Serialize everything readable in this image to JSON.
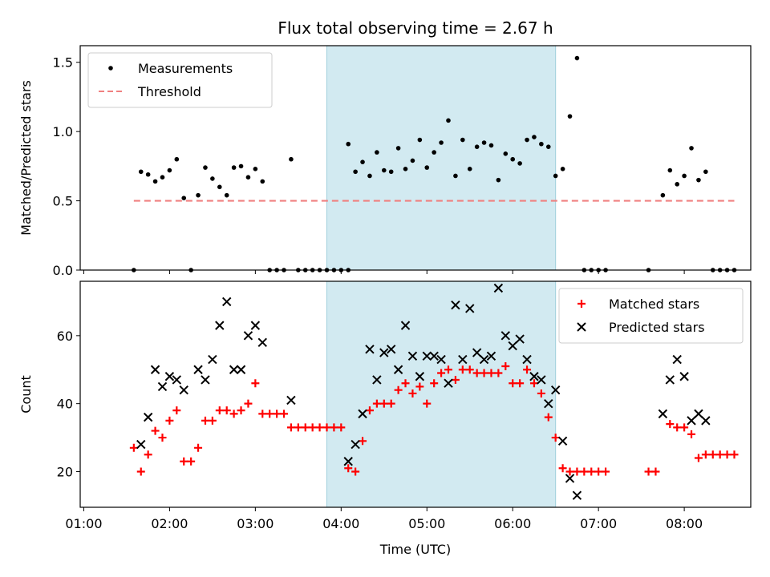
{
  "chart_data": {
    "type": "scatter",
    "title": "Flux total observing time = 2.67 h",
    "xlabel": "Time (UTC)",
    "x_ticks": [
      "01:00",
      "02:00",
      "03:00",
      "04:00",
      "05:00",
      "06:00",
      "07:00",
      "08:00"
    ],
    "highlight_span": [
      "03:50",
      "06:30"
    ],
    "highlight_color": "#add8e6",
    "panels": [
      {
        "ylabel": "Matched/Predicted stars",
        "ylim": [
          0,
          1.62
        ],
        "y_ticks": [
          "0.0",
          "0.5",
          "1.0",
          "1.5"
        ],
        "legend_position": "upper left",
        "series": [
          {
            "name": "Measurements",
            "color": "#000000",
            "marker": "dot",
            "points": [
              [
                "01:35",
                0.0
              ],
              [
                "01:40",
                0.71
              ],
              [
                "01:45",
                0.69
              ],
              [
                "01:50",
                0.64
              ],
              [
                "01:55",
                0.67
              ],
              [
                "02:00",
                0.72
              ],
              [
                "02:05",
                0.8
              ],
              [
                "02:10",
                0.52
              ],
              [
                "02:15",
                0.0
              ],
              [
                "02:20",
                0.54
              ],
              [
                "02:25",
                0.74
              ],
              [
                "02:30",
                0.66
              ],
              [
                "02:35",
                0.6
              ],
              [
                "02:40",
                0.54
              ],
              [
                "02:45",
                0.74
              ],
              [
                "02:50",
                0.75
              ],
              [
                "02:55",
                0.67
              ],
              [
                "03:00",
                0.73
              ],
              [
                "03:05",
                0.64
              ],
              [
                "03:10",
                0.0
              ],
              [
                "03:15",
                0.0
              ],
              [
                "03:20",
                0.0
              ],
              [
                "03:25",
                0.8
              ],
              [
                "03:30",
                0.0
              ],
              [
                "03:35",
                0.0
              ],
              [
                "03:40",
                0.0
              ],
              [
                "03:45",
                0.0
              ],
              [
                "03:50",
                0.0
              ],
              [
                "03:55",
                0.0
              ],
              [
                "04:00",
                0.0
              ],
              [
                "04:05",
                0.0
              ],
              [
                "04:05",
                0.91
              ],
              [
                "04:10",
                0.71
              ],
              [
                "04:15",
                0.78
              ],
              [
                "04:20",
                0.68
              ],
              [
                "04:25",
                0.85
              ],
              [
                "04:30",
                0.72
              ],
              [
                "04:35",
                0.71
              ],
              [
                "04:40",
                0.88
              ],
              [
                "04:45",
                0.73
              ],
              [
                "04:50",
                0.79
              ],
              [
                "04:55",
                0.94
              ],
              [
                "05:00",
                0.74
              ],
              [
                "05:05",
                0.85
              ],
              [
                "05:10",
                0.92
              ],
              [
                "05:15",
                1.08
              ],
              [
                "05:20",
                0.68
              ],
              [
                "05:25",
                0.94
              ],
              [
                "05:30",
                0.73
              ],
              [
                "05:35",
                0.89
              ],
              [
                "05:40",
                0.92
              ],
              [
                "05:45",
                0.9
              ],
              [
                "05:50",
                0.65
              ],
              [
                "05:55",
                0.84
              ],
              [
                "06:00",
                0.8
              ],
              [
                "06:05",
                0.77
              ],
              [
                "06:10",
                0.94
              ],
              [
                "06:15",
                0.96
              ],
              [
                "06:20",
                0.91
              ],
              [
                "06:25",
                0.89
              ],
              [
                "06:30",
                0.68
              ],
              [
                "06:35",
                0.73
              ],
              [
                "06:40",
                1.11
              ],
              [
                "06:45",
                1.53
              ],
              [
                "06:50",
                0.0
              ],
              [
                "06:55",
                0.0
              ],
              [
                "07:00",
                0.0
              ],
              [
                "07:05",
                0.0
              ],
              [
                "07:35",
                0.0
              ],
              [
                "07:45",
                0.54
              ],
              [
                "07:50",
                0.72
              ],
              [
                "07:55",
                0.62
              ],
              [
                "08:00",
                0.68
              ],
              [
                "08:05",
                0.88
              ],
              [
                "08:10",
                0.65
              ],
              [
                "08:15",
                0.71
              ],
              [
                "08:20",
                0.0
              ],
              [
                "08:25",
                0.0
              ],
              [
                "08:30",
                0.0
              ],
              [
                "08:35",
                0.0
              ]
            ]
          },
          {
            "name": "Threshold",
            "color": "#f08080",
            "marker": "dashed-line",
            "points": [
              [
                "01:35",
                0.5
              ],
              [
                "08:35",
                0.5
              ]
            ]
          }
        ]
      },
      {
        "ylabel": "Count",
        "ylim": [
          9.5,
          76
        ],
        "y_ticks": [
          "20",
          "40",
          "60"
        ],
        "legend_position": "upper right",
        "series": [
          {
            "name": "Matched stars",
            "color": "#ff0000",
            "marker": "plus",
            "points": [
              [
                "01:35",
                27
              ],
              [
                "01:40",
                20
              ],
              [
                "01:45",
                25
              ],
              [
                "01:50",
                32
              ],
              [
                "01:55",
                30
              ],
              [
                "02:00",
                35
              ],
              [
                "02:05",
                38
              ],
              [
                "02:10",
                23
              ],
              [
                "02:15",
                23
              ],
              [
                "02:20",
                27
              ],
              [
                "02:25",
                35
              ],
              [
                "02:30",
                35
              ],
              [
                "02:35",
                38
              ],
              [
                "02:40",
                38
              ],
              [
                "02:45",
                37
              ],
              [
                "02:50",
                38
              ],
              [
                "02:55",
                40
              ],
              [
                "03:00",
                46
              ],
              [
                "03:05",
                37
              ],
              [
                "03:10",
                37
              ],
              [
                "03:15",
                37
              ],
              [
                "03:20",
                37
              ],
              [
                "03:25",
                33
              ],
              [
                "03:30",
                33
              ],
              [
                "03:35",
                33
              ],
              [
                "03:40",
                33
              ],
              [
                "03:45",
                33
              ],
              [
                "03:50",
                33
              ],
              [
                "03:55",
                33
              ],
              [
                "04:00",
                33
              ],
              [
                "04:05",
                21
              ],
              [
                "04:10",
                20
              ],
              [
                "04:15",
                29
              ],
              [
                "04:20",
                38
              ],
              [
                "04:25",
                40
              ],
              [
                "04:30",
                40
              ],
              [
                "04:35",
                40
              ],
              [
                "04:40",
                44
              ],
              [
                "04:45",
                46
              ],
              [
                "04:50",
                43
              ],
              [
                "04:55",
                45
              ],
              [
                "05:00",
                40
              ],
              [
                "05:05",
                46
              ],
              [
                "05:10",
                49
              ],
              [
                "05:15",
                50
              ],
              [
                "05:20",
                47
              ],
              [
                "05:25",
                50
              ],
              [
                "05:30",
                50
              ],
              [
                "05:35",
                49
              ],
              [
                "05:40",
                49
              ],
              [
                "05:45",
                49
              ],
              [
                "05:50",
                49
              ],
              [
                "05:55",
                51
              ],
              [
                "06:00",
                46
              ],
              [
                "06:05",
                46
              ],
              [
                "06:10",
                50
              ],
              [
                "06:15",
                46
              ],
              [
                "06:20",
                43
              ],
              [
                "06:25",
                36
              ],
              [
                "06:30",
                30
              ],
              [
                "06:35",
                21
              ],
              [
                "06:40",
                20
              ],
              [
                "06:45",
                20
              ],
              [
                "06:50",
                20
              ],
              [
                "06:55",
                20
              ],
              [
                "07:00",
                20
              ],
              [
                "07:05",
                20
              ],
              [
                "07:35",
                20
              ],
              [
                "07:40",
                20
              ],
              [
                "07:50",
                34
              ],
              [
                "07:55",
                33
              ],
              [
                "08:00",
                33
              ],
              [
                "08:05",
                31
              ],
              [
                "08:10",
                24
              ],
              [
                "08:15",
                25
              ],
              [
                "08:20",
                25
              ],
              [
                "08:25",
                25
              ],
              [
                "08:30",
                25
              ],
              [
                "08:35",
                25
              ]
            ]
          },
          {
            "name": "Predicted stars",
            "color": "#000000",
            "marker": "x",
            "points": [
              [
                "01:40",
                28
              ],
              [
                "01:45",
                36
              ],
              [
                "01:50",
                50
              ],
              [
                "01:55",
                45
              ],
              [
                "02:00",
                48
              ],
              [
                "02:05",
                47
              ],
              [
                "02:10",
                44
              ],
              [
                "02:20",
                50
              ],
              [
                "02:25",
                47
              ],
              [
                "02:30",
                53
              ],
              [
                "02:35",
                63
              ],
              [
                "02:40",
                70
              ],
              [
                "02:45",
                50
              ],
              [
                "02:50",
                50
              ],
              [
                "02:55",
                60
              ],
              [
                "03:00",
                63
              ],
              [
                "03:05",
                58
              ],
              [
                "03:25",
                41
              ],
              [
                "04:05",
                23
              ],
              [
                "04:10",
                28
              ],
              [
                "04:15",
                37
              ],
              [
                "04:20",
                56
              ],
              [
                "04:25",
                47
              ],
              [
                "04:30",
                55
              ],
              [
                "04:35",
                56
              ],
              [
                "04:40",
                50
              ],
              [
                "04:45",
                63
              ],
              [
                "04:50",
                54
              ],
              [
                "04:55",
                48
              ],
              [
                "05:00",
                54
              ],
              [
                "05:05",
                54
              ],
              [
                "05:10",
                53
              ],
              [
                "05:15",
                46
              ],
              [
                "05:20",
                69
              ],
              [
                "05:25",
                53
              ],
              [
                "05:30",
                68
              ],
              [
                "05:35",
                55
              ],
              [
                "05:40",
                53
              ],
              [
                "05:45",
                54
              ],
              [
                "05:50",
                74
              ],
              [
                "05:55",
                60
              ],
              [
                "06:00",
                57
              ],
              [
                "06:05",
                59
              ],
              [
                "06:10",
                53
              ],
              [
                "06:15",
                48
              ],
              [
                "06:20",
                47
              ],
              [
                "06:25",
                40
              ],
              [
                "06:30",
                44
              ],
              [
                "06:35",
                29
              ],
              [
                "06:40",
                18
              ],
              [
                "06:45",
                13
              ],
              [
                "07:45",
                37
              ],
              [
                "07:50",
                47
              ],
              [
                "07:55",
                53
              ],
              [
                "08:00",
                48
              ],
              [
                "08:05",
                35
              ],
              [
                "08:10",
                37
              ],
              [
                "08:15",
                35
              ]
            ]
          }
        ]
      }
    ]
  }
}
